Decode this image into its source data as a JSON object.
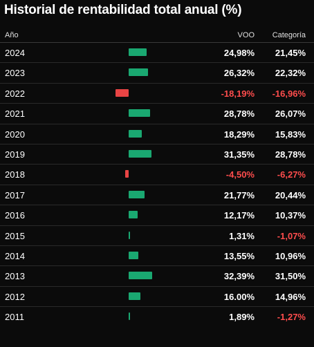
{
  "chart": {
    "title": "Historial de rentabilidad total anual (%)"
  },
  "colors": {
    "positive_bar": "#1aa871",
    "negative_bar": "#e84444",
    "negative_text": "#ff4d4d",
    "background": "#0b0b0b"
  },
  "chart_data": {
    "type": "table",
    "title": "Historial de rentabilidad total anual (%)",
    "columns": [
      "Año",
      "VOO",
      "Categoría"
    ],
    "rows": [
      {
        "year": "2024",
        "voo": 24.98,
        "voo_text": "24,98%",
        "cat": 21.45,
        "cat_text": "21,45%"
      },
      {
        "year": "2023",
        "voo": 26.32,
        "voo_text": "26,32%",
        "cat": 22.32,
        "cat_text": "22,32%"
      },
      {
        "year": "2022",
        "voo": -18.19,
        "voo_text": "-18,19%",
        "cat": -16.96,
        "cat_text": "-16,96%"
      },
      {
        "year": "2021",
        "voo": 28.78,
        "voo_text": "28,78%",
        "cat": 26.07,
        "cat_text": "26,07%"
      },
      {
        "year": "2020",
        "voo": 18.29,
        "voo_text": "18,29%",
        "cat": 15.83,
        "cat_text": "15,83%"
      },
      {
        "year": "2019",
        "voo": 31.35,
        "voo_text": "31,35%",
        "cat": 28.78,
        "cat_text": "28,78%"
      },
      {
        "year": "2018",
        "voo": -4.5,
        "voo_text": "-4,50%",
        "cat": -6.27,
        "cat_text": "-6,27%"
      },
      {
        "year": "2017",
        "voo": 21.77,
        "voo_text": "21,77%",
        "cat": 20.44,
        "cat_text": "20,44%"
      },
      {
        "year": "2016",
        "voo": 12.17,
        "voo_text": "12,17%",
        "cat": 10.37,
        "cat_text": "10,37%"
      },
      {
        "year": "2015",
        "voo": 1.31,
        "voo_text": "1,31%",
        "cat": -1.07,
        "cat_text": "-1,07%"
      },
      {
        "year": "2014",
        "voo": 13.55,
        "voo_text": "13,55%",
        "cat": 10.96,
        "cat_text": "10,96%"
      },
      {
        "year": "2013",
        "voo": 32.39,
        "voo_text": "32,39%",
        "cat": 31.5,
        "cat_text": "31,50%"
      },
      {
        "year": "2012",
        "voo": 16.0,
        "voo_text": "16.00%",
        "cat": 14.96,
        "cat_text": "14,96%"
      },
      {
        "year": "2011",
        "voo": 1.89,
        "voo_text": "1,89%",
        "cat": -1.27,
        "cat_text": "-1,27%"
      }
    ]
  }
}
